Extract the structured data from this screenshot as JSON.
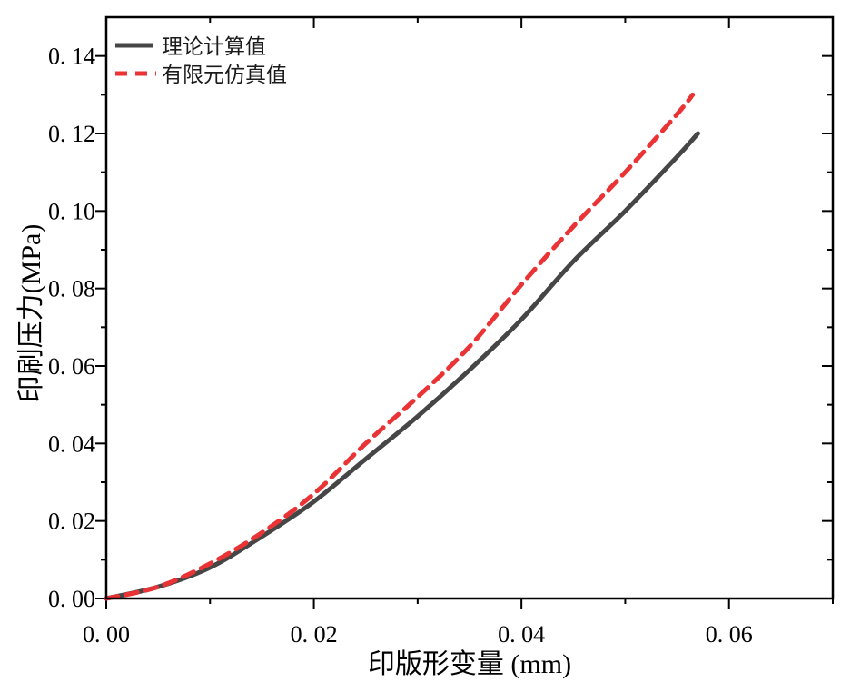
{
  "figure": {
    "background": "#ffffff",
    "frame_color": "#000000"
  },
  "legend": {
    "position": "top-left",
    "items": [
      {
        "label": "理论计算值",
        "line_style": "solid",
        "color": "#464646"
      },
      {
        "label": "有限元仿真值",
        "line_style": "dashed",
        "color": "#ea3335"
      }
    ]
  },
  "chart_data": {
    "type": "line",
    "title": "",
    "xlabel": "印版形变量 (mm)",
    "ylabel": "印刷压力(MPa)",
    "xlim": [
      0,
      0.07
    ],
    "ylim": [
      0,
      0.15
    ],
    "grid": false,
    "legend_position": "top-left",
    "x_major_ticks": [
      0,
      0.02,
      0.04,
      0.06
    ],
    "x_minor_ticks": [
      0.01,
      0.03,
      0.05,
      0.07
    ],
    "x_tick_labels": [
      "0. 00",
      "0. 02",
      "0. 04",
      "0. 06"
    ],
    "y_major_ticks": [
      0,
      0.02,
      0.04,
      0.06,
      0.08,
      0.1,
      0.12,
      0.14
    ],
    "y_minor_ticks": [
      0.01,
      0.03,
      0.05,
      0.07,
      0.09,
      0.11,
      0.13
    ],
    "y_tick_labels": [
      "0. 00",
      "0. 02",
      "0. 04",
      "0. 06",
      "0. 08",
      "0. 10",
      "0. 12",
      "0. 14"
    ],
    "series": [
      {
        "name": "理论计算值",
        "color": "#464646",
        "style": "solid",
        "line_width": 5,
        "x": [
          0,
          0.005,
          0.01,
          0.015,
          0.02,
          0.025,
          0.03,
          0.035,
          0.04,
          0.045,
          0.05,
          0.055,
          0.057
        ],
        "y": [
          0,
          0.003,
          0.008,
          0.016,
          0.025,
          0.036,
          0.047,
          0.059,
          0.072,
          0.087,
          0.1,
          0.114,
          0.12
        ]
      },
      {
        "name": "有限元仿真值",
        "color": "#ea3335",
        "style": "dashed",
        "line_width": 5,
        "dash_pattern": [
          13,
          9
        ],
        "x": [
          0,
          0.005,
          0.01,
          0.015,
          0.02,
          0.025,
          0.03,
          0.035,
          0.04,
          0.045,
          0.05,
          0.055,
          0.0565
        ],
        "y": [
          0,
          0.003,
          0.009,
          0.017,
          0.027,
          0.04,
          0.052,
          0.065,
          0.081,
          0.096,
          0.11,
          0.125,
          0.13
        ]
      }
    ]
  }
}
